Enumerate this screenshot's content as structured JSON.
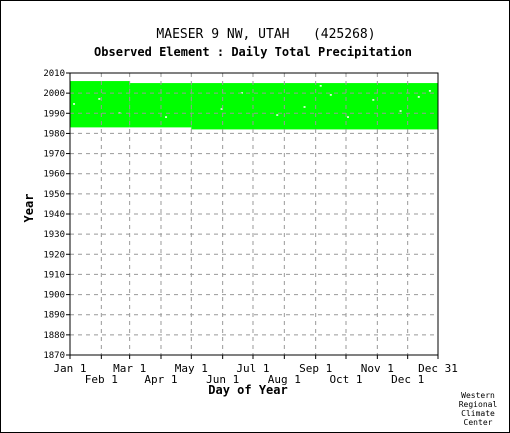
{
  "chart_data": {
    "type": "heatmap",
    "title": "MAESER 9 NW, UTAH   (425268)",
    "subtitle": "Observed Element : Daily Total Precipitation",
    "xlabel": "Day of Year",
    "ylabel": "Year",
    "xlim": [
      1,
      365
    ],
    "ylim": [
      1870,
      2010
    ],
    "yticks": [
      1870,
      1880,
      1890,
      1900,
      1910,
      1920,
      1930,
      1940,
      1950,
      1960,
      1970,
      1980,
      1990,
      2000,
      2010
    ],
    "xticks_top_row": [
      {
        "label": "Jan 1",
        "day": 1
      },
      {
        "label": "Mar 1",
        "day": 60
      },
      {
        "label": "May 1",
        "day": 121
      },
      {
        "label": "Jul 1",
        "day": 182
      },
      {
        "label": "Sep 1",
        "day": 244
      },
      {
        "label": "Nov 1",
        "day": 305
      },
      {
        "label": "Dec 31",
        "day": 365
      }
    ],
    "xticks_bottom_row": [
      {
        "label": "Feb 1",
        "day": 32
      },
      {
        "label": "Apr 1",
        "day": 91
      },
      {
        "label": "Jun 1",
        "day": 152
      },
      {
        "label": "Aug 1",
        "day": 213
      },
      {
        "label": "Oct 1",
        "day": 274
      },
      {
        "label": "Dec 1",
        "day": 335
      }
    ],
    "grid": true,
    "fill_color": "#00ff00",
    "coverage": [
      {
        "day_start": 1,
        "day_end": 59,
        "year_start": 1983,
        "year_end": 2006
      },
      {
        "day_start": 60,
        "day_end": 120,
        "year_start": 1983,
        "year_end": 2005
      },
      {
        "day_start": 121,
        "day_end": 365,
        "year_start": 1982,
        "year_end": 2005
      }
    ],
    "gaps": [
      {
        "day": 4,
        "year": 1994.5
      },
      {
        "day": 29,
        "year": 1997
      },
      {
        "day": 49,
        "year": 1990
      },
      {
        "day": 95,
        "year": 1988
      },
      {
        "day": 150,
        "year": 1992
      },
      {
        "day": 170,
        "year": 2000
      },
      {
        "day": 205,
        "year": 1989
      },
      {
        "day": 232,
        "year": 1993
      },
      {
        "day": 248,
        "year": 2003.5
      },
      {
        "day": 258,
        "year": 1999
      },
      {
        "day": 275,
        "year": 1988
      },
      {
        "day": 300,
        "year": 1996.5
      },
      {
        "day": 327,
        "year": 1991
      },
      {
        "day": 345,
        "year": 1998
      },
      {
        "day": 356,
        "year": 2001
      }
    ]
  },
  "credit": [
    "Western",
    "Regional",
    "Climate",
    "Center"
  ]
}
